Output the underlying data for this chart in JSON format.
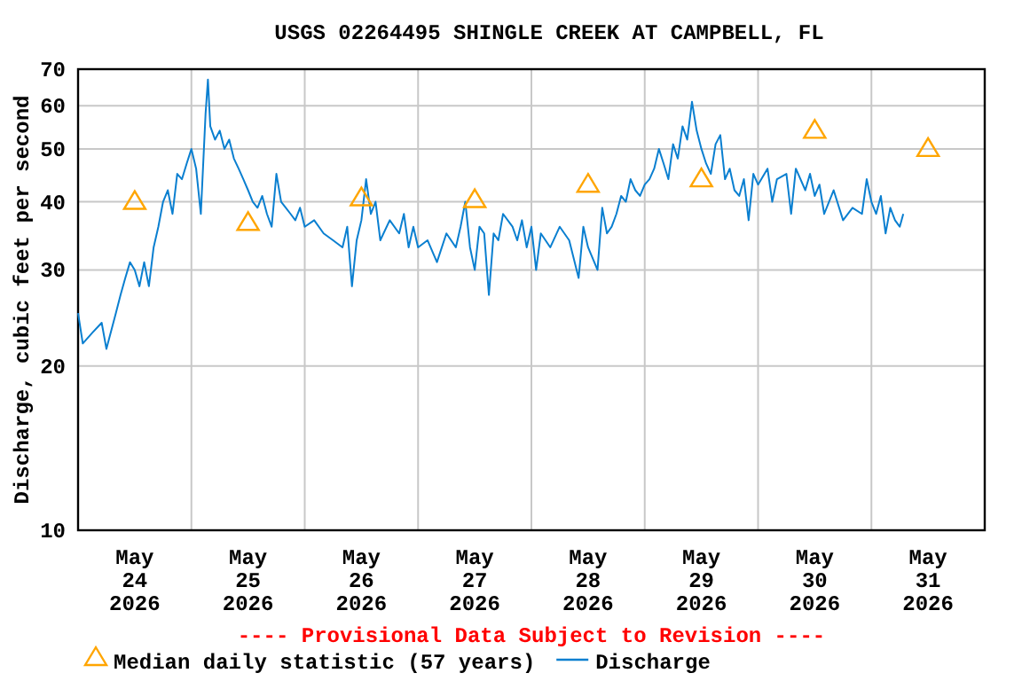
{
  "chart_data": {
    "type": "line",
    "title": "USGS 02264495 SHINGLE CREEK AT CAMPBELL, FL",
    "ylabel": "Discharge, cubic feet per second",
    "log": "y",
    "grid": true,
    "legend": "bottom",
    "annotations": [
      "---- Provisional Data Subject to Revision ----"
    ],
    "xlim": [
      "2026-05-24T00:00",
      "2026-06-01T00:00"
    ],
    "xticks": [
      {
        "value": "2026-05-24T00:00",
        "label": null
      },
      {
        "value": "2026-05-24T12:00",
        "label": "May 24 2026"
      },
      {
        "value": "2026-05-25T00:00",
        "label": null
      },
      {
        "value": "2026-05-25T12:00",
        "label": "May 25 2026"
      },
      {
        "value": "2026-05-26T00:00",
        "label": null
      },
      {
        "value": "2026-05-26T12:00",
        "label": "May 26 2026"
      },
      {
        "value": "2026-05-27T00:00",
        "label": null
      },
      {
        "value": "2026-05-27T12:00",
        "label": "May 27 2026"
      },
      {
        "value": "2026-05-28T00:00",
        "label": null
      },
      {
        "value": "2026-05-28T12:00",
        "label": "May 28 2026"
      },
      {
        "value": "2026-05-29T00:00",
        "label": null
      },
      {
        "value": "2026-05-29T12:00",
        "label": "May 29 2026"
      },
      {
        "value": "2026-05-30T00:00",
        "label": null
      },
      {
        "value": "2026-05-30T12:00",
        "label": "May 30 2026"
      },
      {
        "value": "2026-05-31T00:00",
        "label": null
      },
      {
        "value": "2026-05-31T12:00",
        "label": "May 31 2026"
      }
    ],
    "ylim": [
      10,
      70
    ],
    "yticks": [
      10,
      20,
      30,
      40,
      50,
      60,
      70
    ],
    "series": [
      {
        "name": "Median daily statistic (57 years)",
        "type": "scatter",
        "marker": "triangle",
        "color": "#ffa500",
        "x": [
          "2026-05-24T12:00",
          "2026-05-25T12:00",
          "2026-05-26T12:00",
          "2026-05-27T12:00",
          "2026-05-28T12:00",
          "2026-05-29T12:00",
          "2026-05-30T12:00",
          "2026-05-31T12:00"
        ],
        "values": [
          40,
          36.6,
          40.6,
          40.3,
          43,
          44,
          54,
          50
        ]
      },
      {
        "name": "Discharge",
        "marker": "none",
        "color": "#0a7fd0",
        "x": [
          "2026-05-24T00:00",
          "2026-05-24T01:00",
          "2026-05-24T03:00",
          "2026-05-24T05:00",
          "2026-05-24T06:00",
          "2026-05-24T08:00",
          "2026-05-24T09:00",
          "2026-05-24T10:00",
          "2026-05-24T11:00",
          "2026-05-24T12:00",
          "2026-05-24T13:00",
          "2026-05-24T14:00",
          "2026-05-24T15:00",
          "2026-05-24T16:00",
          "2026-05-24T17:00",
          "2026-05-24T18:00",
          "2026-05-24T19:00",
          "2026-05-24T20:00",
          "2026-05-24T21:00",
          "2026-05-24T22:00",
          "2026-05-24T23:00",
          "2026-05-25T00:00",
          "2026-05-25T01:00",
          "2026-05-25T02:00",
          "2026-05-25T03:00",
          "2026-05-25T03:30",
          "2026-05-25T04:00",
          "2026-05-25T05:00",
          "2026-05-25T06:00",
          "2026-05-25T07:00",
          "2026-05-25T08:00",
          "2026-05-25T09:00",
          "2026-05-25T10:00",
          "2026-05-25T11:00",
          "2026-05-25T12:00",
          "2026-05-25T13:00",
          "2026-05-25T14:00",
          "2026-05-25T15:00",
          "2026-05-25T16:00",
          "2026-05-25T17:00",
          "2026-05-25T18:00",
          "2026-05-25T19:00",
          "2026-05-25T20:00",
          "2026-05-25T21:00",
          "2026-05-25T22:00",
          "2026-05-25T23:00",
          "2026-05-26T00:00",
          "2026-05-26T02:00",
          "2026-05-26T04:00",
          "2026-05-26T06:00",
          "2026-05-26T08:00",
          "2026-05-26T09:00",
          "2026-05-26T10:00",
          "2026-05-26T11:00",
          "2026-05-26T12:00",
          "2026-05-26T13:00",
          "2026-05-26T14:00",
          "2026-05-26T15:00",
          "2026-05-26T16:00",
          "2026-05-26T18:00",
          "2026-05-26T20:00",
          "2026-05-26T21:00",
          "2026-05-26T22:00",
          "2026-05-26T23:00",
          "2026-05-27T00:00",
          "2026-05-27T02:00",
          "2026-05-27T04:00",
          "2026-05-27T06:00",
          "2026-05-27T08:00",
          "2026-05-27T09:00",
          "2026-05-27T10:00",
          "2026-05-27T11:00",
          "2026-05-27T12:00",
          "2026-05-27T13:00",
          "2026-05-27T14:00",
          "2026-05-27T15:00",
          "2026-05-27T16:00",
          "2026-05-27T17:00",
          "2026-05-27T18:00",
          "2026-05-27T20:00",
          "2026-05-27T21:00",
          "2026-05-27T22:00",
          "2026-05-27T23:00",
          "2026-05-28T00:00",
          "2026-05-28T01:00",
          "2026-05-28T02:00",
          "2026-05-28T04:00",
          "2026-05-28T06:00",
          "2026-05-28T08:00",
          "2026-05-28T10:00",
          "2026-05-28T11:00",
          "2026-05-28T12:00",
          "2026-05-28T14:00",
          "2026-05-28T15:00",
          "2026-05-28T16:00",
          "2026-05-28T17:00",
          "2026-05-28T18:00",
          "2026-05-28T19:00",
          "2026-05-28T20:00",
          "2026-05-28T21:00",
          "2026-05-28T22:00",
          "2026-05-28T23:00",
          "2026-05-29T00:00",
          "2026-05-29T01:00",
          "2026-05-29T02:00",
          "2026-05-29T03:00",
          "2026-05-29T04:00",
          "2026-05-29T05:00",
          "2026-05-29T06:00",
          "2026-05-29T07:00",
          "2026-05-29T08:00",
          "2026-05-29T09:00",
          "2026-05-29T10:00",
          "2026-05-29T11:00",
          "2026-05-29T12:00",
          "2026-05-29T13:00",
          "2026-05-29T14:00",
          "2026-05-29T15:00",
          "2026-05-29T16:00",
          "2026-05-29T17:00",
          "2026-05-29T18:00",
          "2026-05-29T19:00",
          "2026-05-29T20:00",
          "2026-05-29T21:00",
          "2026-05-29T22:00",
          "2026-05-29T23:00",
          "2026-05-30T00:00",
          "2026-05-30T02:00",
          "2026-05-30T03:00",
          "2026-05-30T04:00",
          "2026-05-30T06:00",
          "2026-05-30T07:00",
          "2026-05-30T08:00",
          "2026-05-30T10:00",
          "2026-05-30T11:00",
          "2026-05-30T12:00",
          "2026-05-30T13:00",
          "2026-05-30T14:00",
          "2026-05-30T16:00",
          "2026-05-30T18:00",
          "2026-05-30T20:00",
          "2026-05-30T22:00",
          "2026-05-30T23:00",
          "2026-05-31T00:00",
          "2026-05-31T01:00",
          "2026-05-31T02:00",
          "2026-05-31T03:00",
          "2026-05-31T04:00",
          "2026-05-31T05:00",
          "2026-05-31T06:00",
          "2026-05-31T06:45"
        ],
        "values": [
          25,
          22,
          23,
          24,
          21.5,
          25,
          27,
          29,
          31,
          30,
          28,
          31,
          28,
          33,
          36,
          40,
          42,
          38,
          45,
          44,
          47,
          50,
          46,
          38,
          58,
          67,
          55,
          52,
          54,
          50,
          52,
          48,
          46,
          44,
          42,
          40,
          39,
          41,
          38,
          36,
          45,
          40,
          39,
          38,
          37,
          39,
          36,
          37,
          35,
          34,
          33,
          36,
          28,
          34,
          37,
          44,
          38,
          40,
          34,
          37,
          35,
          38,
          33,
          36,
          33,
          34,
          31,
          35,
          33,
          36,
          40,
          33,
          30,
          36,
          35,
          27,
          35,
          34,
          38,
          36,
          34,
          37,
          33,
          36,
          30,
          35,
          33,
          36,
          34,
          29,
          36,
          33,
          30,
          39,
          35,
          36,
          38,
          41,
          40,
          44,
          42,
          41,
          43,
          44,
          46,
          50,
          47,
          44,
          51,
          48,
          55,
          52,
          61,
          54,
          50,
          47,
          45,
          51,
          53,
          44,
          46,
          42,
          41,
          44,
          37,
          45,
          43,
          46,
          40,
          44,
          45,
          38,
          46,
          42,
          45,
          41,
          43,
          38,
          42,
          37,
          39,
          38,
          44,
          40,
          38,
          41,
          35,
          39,
          37,
          36,
          38
        ]
      }
    ]
  }
}
